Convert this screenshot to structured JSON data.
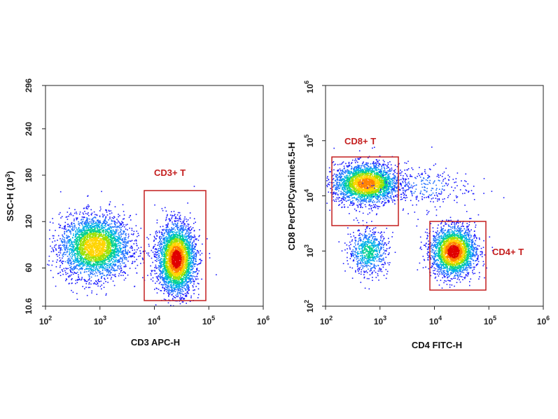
{
  "chart_data": [
    {
      "type": "scatter",
      "xlabel": "CD3 APC-H",
      "ylabel": "SSC-H (10",
      "ylabel_exp": "3",
      "ylabel_close": ")",
      "x_scale": "log",
      "y_scale": "linear",
      "xlim": [
        100,
        1000000
      ],
      "ylim": [
        10.6,
        296
      ],
      "x_ticks": [
        {
          "value": 100,
          "base": "10",
          "exp": "2"
        },
        {
          "value": 1000,
          "base": "10",
          "exp": "3"
        },
        {
          "value": 10000,
          "base": "10",
          "exp": "4"
        },
        {
          "value": 100000,
          "base": "10",
          "exp": "5"
        },
        {
          "value": 1000000,
          "base": "10",
          "exp": "6"
        }
      ],
      "y_ticks": [
        {
          "value": 10.6,
          "label": "10.6"
        },
        {
          "value": 60,
          "label": "60"
        },
        {
          "value": 120,
          "label": "120"
        },
        {
          "value": 180,
          "label": "180"
        },
        {
          "value": 240,
          "label": "240"
        },
        {
          "value": 296,
          "label": "296"
        }
      ],
      "populations": [
        {
          "x_center": 800,
          "y_center": 88,
          "x_spread_decades": 0.32,
          "y_spread": 20,
          "count": 3200,
          "peak": 0.75
        },
        {
          "x_center": 25000,
          "y_center": 72,
          "x_spread_decades": 0.17,
          "y_spread": 22,
          "count": 3400,
          "peak": 1.0
        }
      ],
      "gates": [
        {
          "label": "CD3+ T",
          "x_range": [
            7500,
            100000
          ],
          "y_range": [
            10.6,
            162
          ]
        }
      ],
      "grid": false
    },
    {
      "type": "scatter",
      "xlabel": "CD4 FITC-H",
      "ylabel": "CD8 PerCP/Cyanine5.5-H",
      "x_scale": "log",
      "y_scale": "log",
      "xlim": [
        100,
        1000000
      ],
      "ylim": [
        100,
        1000000
      ],
      "x_ticks": [
        {
          "value": 100,
          "base": "10",
          "exp": "2"
        },
        {
          "value": 1000,
          "base": "10",
          "exp": "3"
        },
        {
          "value": 10000,
          "base": "10",
          "exp": "4"
        },
        {
          "value": 100000,
          "base": "10",
          "exp": "5"
        },
        {
          "value": 1000000,
          "base": "10",
          "exp": "6"
        }
      ],
      "y_ticks": [
        {
          "value": 100,
          "base": "10",
          "exp": "2"
        },
        {
          "value": 1000,
          "base": "10",
          "exp": "3"
        },
        {
          "value": 10000,
          "base": "10",
          "exp": "4"
        },
        {
          "value": 100000,
          "base": "10",
          "exp": "5"
        },
        {
          "value": 1000000,
          "base": "10",
          "exp": "6"
        }
      ],
      "populations": [
        {
          "x_center": 550,
          "y_center": 17000,
          "x_spread_decades": 0.3,
          "y_spread_decades": 0.18,
          "count": 2600,
          "peak": 0.85
        },
        {
          "x_center": 600,
          "y_center": 1000,
          "x_spread_decades": 0.18,
          "y_spread_decades": 0.2,
          "count": 700,
          "peak": 0.45
        },
        {
          "x_center": 22000,
          "y_center": 1000,
          "x_spread_decades": 0.2,
          "y_spread_decades": 0.22,
          "count": 2600,
          "peak": 1.0
        },
        {
          "x_center": 6000,
          "y_center": 15000,
          "x_spread_decades": 0.45,
          "y_spread_decades": 0.2,
          "count": 260,
          "peak": 0.18
        }
      ],
      "gates": [
        {
          "label": "CD8+ T",
          "x_range": [
            110,
            2000
          ],
          "y_range": [
            2700,
            50000
          ]
        },
        {
          "label": "CD4+ T",
          "x_range": [
            7500,
            75000
          ],
          "y_range": [
            190,
            3700
          ]
        }
      ],
      "grid": false
    }
  ]
}
